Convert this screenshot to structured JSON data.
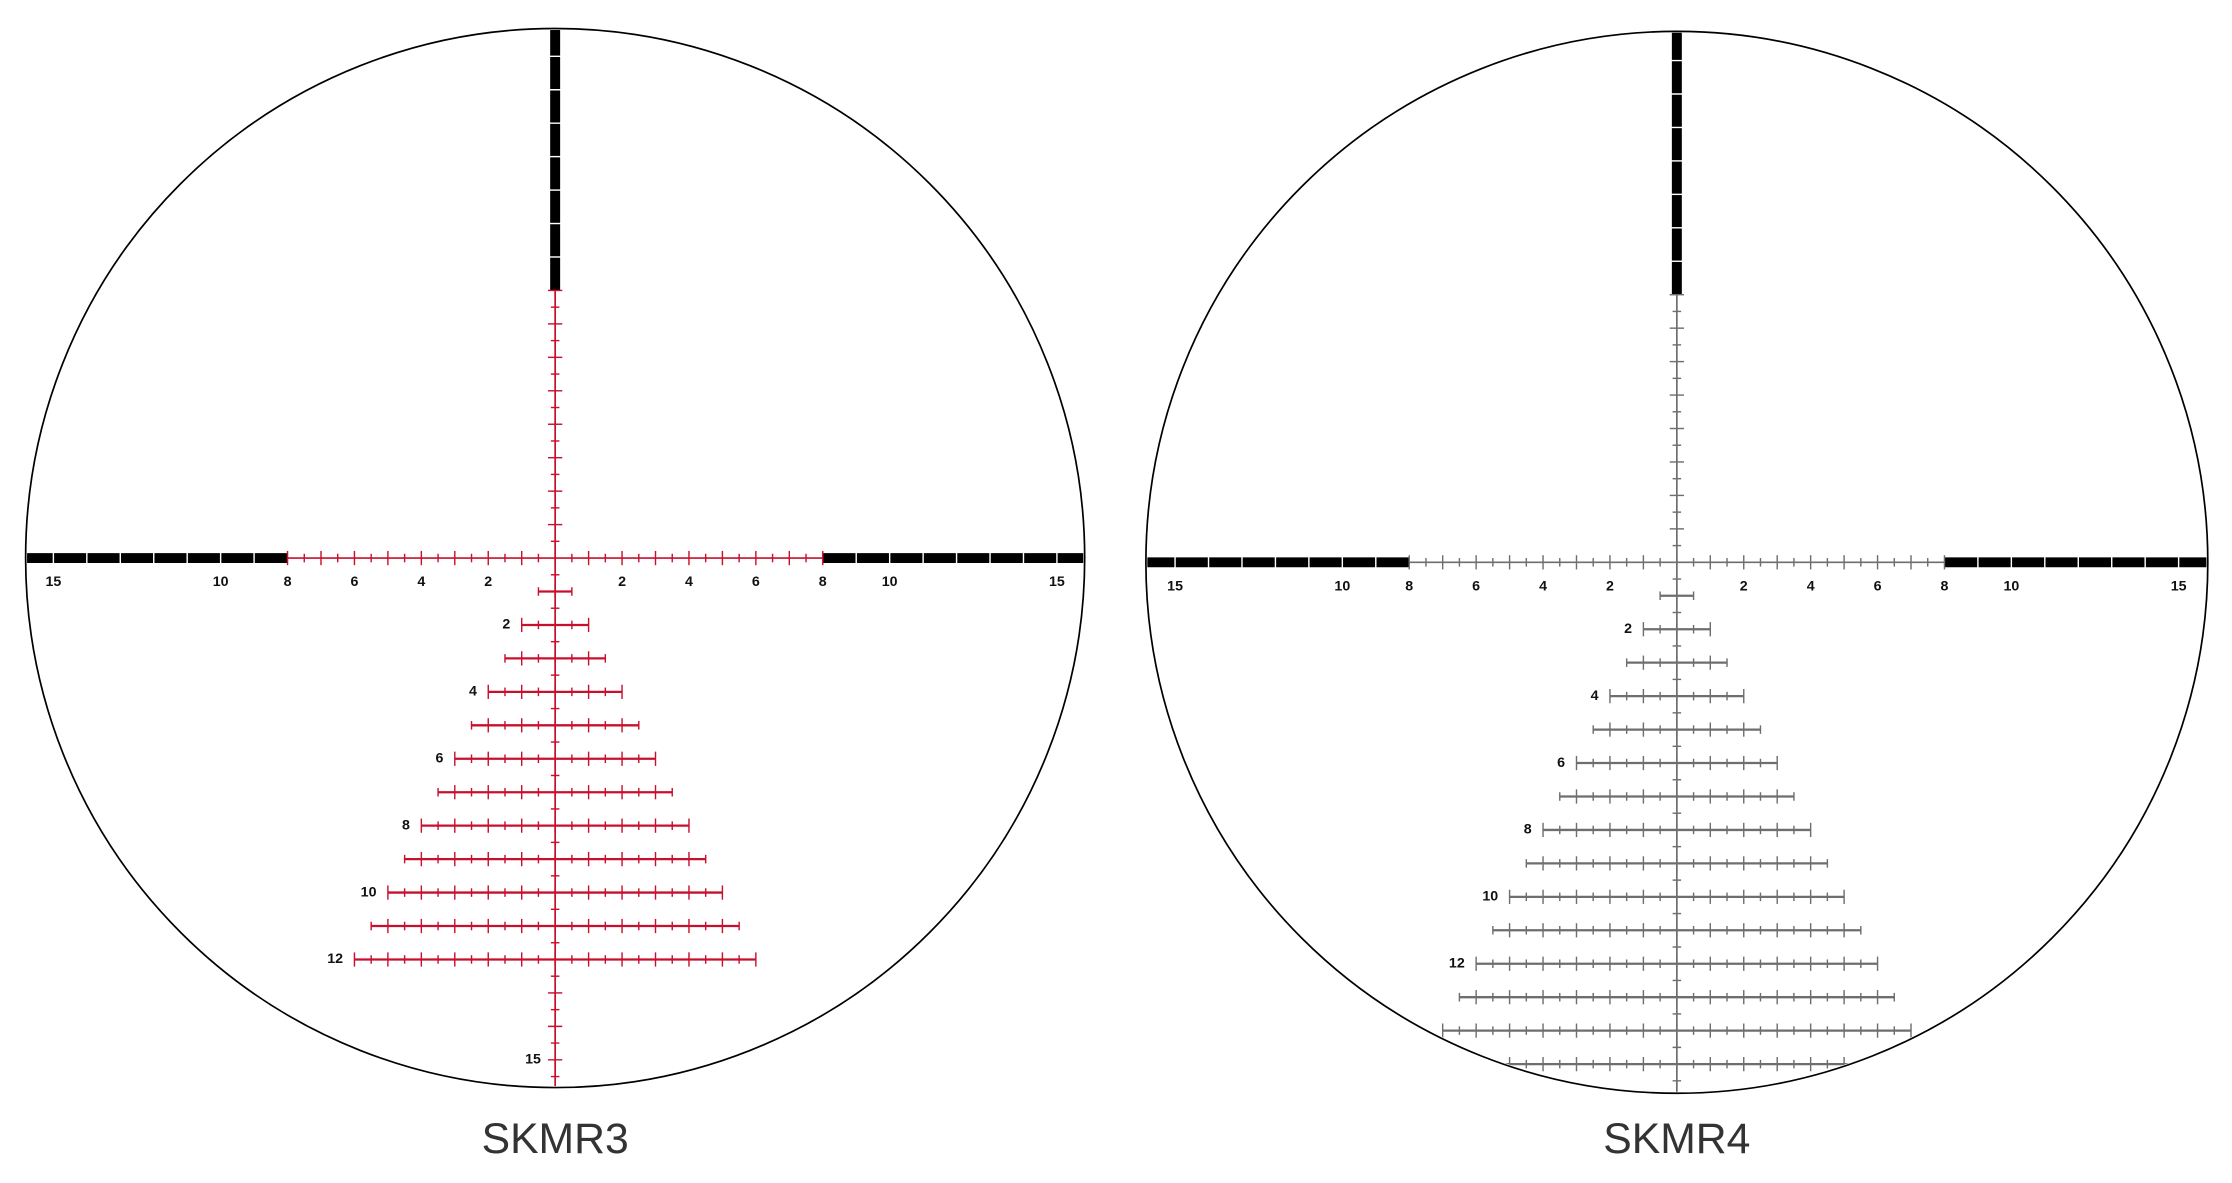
{
  "reticles": [
    {
      "name": "SKMR3",
      "color": "#c8102e",
      "left_labels": [
        15,
        10,
        8,
        6,
        4,
        2
      ],
      "right_labels": [
        2,
        4,
        6,
        8,
        10,
        15
      ],
      "drop_labels": [
        2,
        4,
        6,
        8,
        10,
        12,
        15
      ]
    },
    {
      "name": "SKMR4",
      "color": "#6e6e6e",
      "left_labels": [
        15,
        10,
        8,
        6,
        4,
        2
      ],
      "right_labels": [
        2,
        4,
        6,
        8,
        10,
        15
      ],
      "drop_labels": [
        2,
        4,
        6,
        8,
        10,
        12
      ]
    }
  ]
}
